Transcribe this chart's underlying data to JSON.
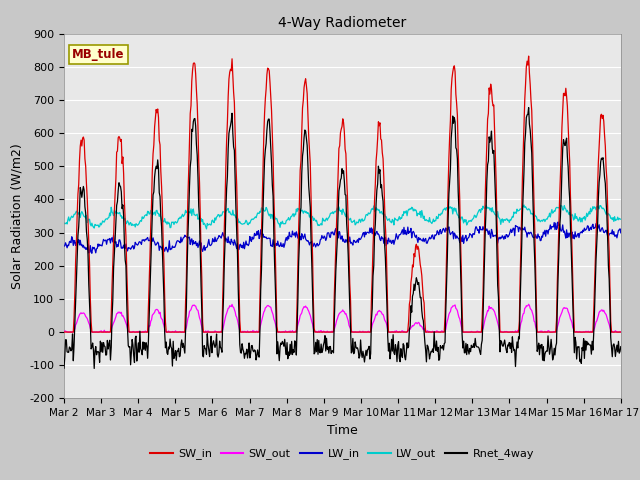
{
  "title": "4-Way Radiometer",
  "xlabel": "Time",
  "ylabel": "Solar Radiation (W/m2)",
  "station_label": "MB_tule",
  "ylim": [
    -200,
    900
  ],
  "yticks": [
    -200,
    -100,
    0,
    100,
    200,
    300,
    400,
    500,
    600,
    700,
    800,
    900
  ],
  "x_tick_labels": [
    "Mar 2",
    "Mar 3",
    "Mar 4",
    "Mar 5",
    "Mar 6",
    "Mar 7",
    "Mar 8",
    "Mar 9",
    "Mar 10",
    "Mar 11",
    "Mar 12",
    "Mar 13",
    "Mar 14",
    "Mar 15",
    "Mar 16",
    "Mar 17"
  ],
  "colors": {
    "SW_in": "#dd0000",
    "SW_out": "#ff00ff",
    "LW_in": "#0000cc",
    "LW_out": "#00cccc",
    "Rnet_4way": "#000000"
  },
  "fig_bg": "#c8c8c8",
  "plot_bg": "#e8e8e8",
  "n_days": 15,
  "seed": 42
}
